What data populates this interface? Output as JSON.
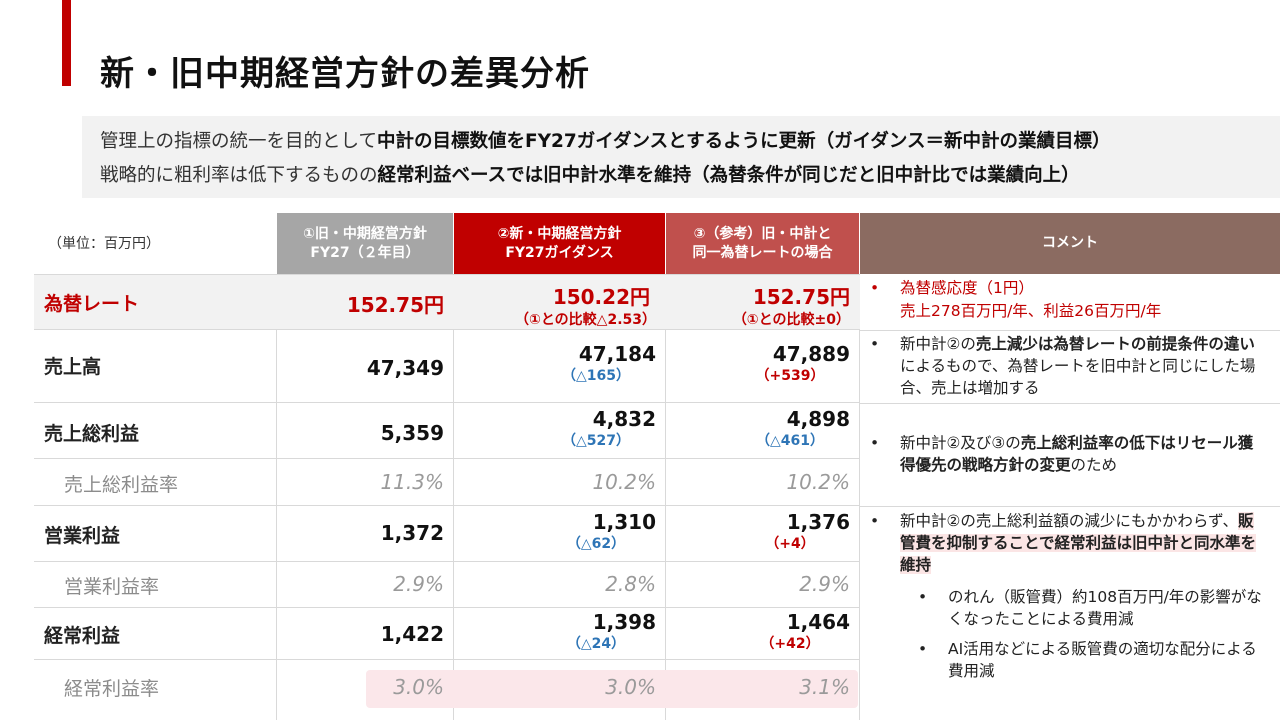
{
  "title": "新・旧中期経営方針の差異分析",
  "summary": {
    "line1_a": "管理上の指標の統一を目的として",
    "line1_b": "中計の目標数値をFY27ガイダンスとするように更新（ガイダンス＝新中計の業績目標）",
    "line2_a": "戦略的に粗利率は低下するものの",
    "line2_b": "経常利益ベースでは旧中計水準を維持（為替条件が同じだと旧中計比では業績向上）"
  },
  "table": {
    "unit": "（単位：百万円）",
    "headers": {
      "col1": [
        "①旧・中期経営方針",
        "FY27（２年目）"
      ],
      "col2": [
        "②新・中期経営方針",
        "FY27ガイダンス"
      ],
      "col3": [
        "③（参考）旧・中計と",
        "同一為替レートの場合"
      ],
      "col4": "コメント"
    },
    "colors": {
      "col1_header": "#a6a6a6",
      "col2_header": "#c00000",
      "col3_header": "#c0504d",
      "col4_header": "#8b6b61",
      "fx_row_bg": "#f2f2f2"
    },
    "rows": {
      "fx": {
        "label": "為替レート",
        "c1": "152.75円",
        "c2": "150.22円",
        "c2_note": "（①との比較△2.53）",
        "c3": "152.75円",
        "c3_note": "（①との比較±0）"
      },
      "sales": {
        "label": "売上高",
        "c1": "47,349",
        "c2": "47,184",
        "c2_delta": "（△165）",
        "c3": "47,889",
        "c3_delta": "（+539）"
      },
      "gross": {
        "label": "売上総利益",
        "c1": "5,359",
        "c2": "4,832",
        "c2_delta": "（△527）",
        "c3": "4,898",
        "c3_delta": "（△461）"
      },
      "gross_rate": {
        "label": "売上総利益率",
        "c1": "11.3%",
        "c2": "10.2%",
        "c3": "10.2%"
      },
      "op": {
        "label": "営業利益",
        "c1": "1,372",
        "c2": "1,310",
        "c2_delta": "（△62）",
        "c3": "1,376",
        "c3_delta": "（+4）"
      },
      "op_rate": {
        "label": "営業利益率",
        "c1": "2.9%",
        "c2": "2.8%",
        "c3": "2.9%"
      },
      "ord": {
        "label": "経常利益",
        "c1": "1,422",
        "c2": "1,398",
        "c2_delta": "（△24）",
        "c3": "1,464",
        "c3_delta": "（+42）"
      },
      "ord_rate": {
        "label": "経常利益率",
        "c1": "3.0%",
        "c2": "3.0%",
        "c3": "3.1%"
      }
    },
    "comments": {
      "bullet": "•",
      "fx_1": "為替感応度（1円）",
      "fx_2": "売上278百万円/年、利益26百万円/年",
      "sales_a": "新中計②の",
      "sales_b": "売上減少は為替レートの前提条件の違い",
      "sales_c": "によるもので、為替レートを旧中計と同じにした場合、売上は増加する",
      "gross_a": "新中計②及び③の",
      "gross_b": "売上総利益率の低下はリセール獲得優先の戦略方針の変更",
      "gross_c": "のため",
      "op_a": "新中計②の売上総利益額の減少にもかかわらず、",
      "op_b": "販管費を抑制することで経常利益は旧中計と同水準を維持",
      "op_sub1": "のれん（販管費）約108百万円/年の影響がなくなったことによる費用減",
      "op_sub2": "AI活用などによる販管費の適切な配分による費用減"
    }
  }
}
